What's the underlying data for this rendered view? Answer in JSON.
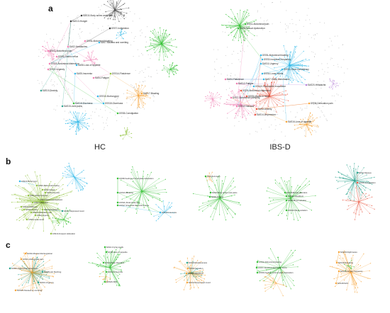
{
  "figure": {
    "panels": [
      {
        "letter": "a"
      },
      {
        "letter": "b"
      },
      {
        "letter": "c"
      }
    ],
    "captions": [
      "HC",
      "IBS-D"
    ]
  },
  "colors": {
    "green": "#2fbf2f",
    "blue": "#29b6e8",
    "pink": "#f07ab0",
    "orange": "#f5a030",
    "olive": "#8fc23a",
    "teal": "#22a08a",
    "purple": "#b47ad8",
    "red": "#e8503a",
    "gray": "#bdbdbd",
    "dark": "#333333"
  },
  "networks": [
    {
      "id": "a-hc",
      "panel": "a",
      "hubs": [
        {
          "label": "SAS11-Body aches and pains",
          "color": "dark"
        },
        {
          "label": "SAS13-Hunger",
          "color": "dark"
        },
        {
          "label": "GSS7-Indigestion",
          "color": "dark"
        },
        {
          "label": "GSS6-Abdominal bloating",
          "color": "pink"
        },
        {
          "label": "SAS2-Headaches",
          "color": "pink"
        },
        {
          "label": "GSS1-Abdominal pain",
          "color": "pink"
        },
        {
          "label": "GSS4-Gastric reflux",
          "color": "pink"
        },
        {
          "label": "GSS3-Abdominal distension",
          "color": "pink"
        },
        {
          "label": "SAS8-Loss of appetite",
          "color": "blue"
        },
        {
          "label": "SAS7-Nausea and vomiting",
          "color": "blue"
        },
        {
          "label": "GSS2-Urgency",
          "color": "pink"
        },
        {
          "label": "SAS4-Fatigue",
          "color": "pink"
        },
        {
          "label": "SAS5-Insomnia",
          "color": "blue"
        },
        {
          "label": "GSS14-Flatulence",
          "color": "olive"
        },
        {
          "label": "SAS15-Joint pains",
          "color": "teal"
        },
        {
          "label": "SAS10-Anxiety",
          "color": "teal"
        },
        {
          "label": "SAS18-Dizziness",
          "color": "green"
        },
        {
          "label": "GSS8-Constipation",
          "color": "green"
        },
        {
          "label": "SAS17-Bloating",
          "color": "orange"
        },
        {
          "label": "GSS15-Diarrhoea",
          "color": "blue"
        },
        {
          "label": "GSS10-Borborygmi",
          "color": "blue"
        }
      ]
    },
    {
      "id": "a-ibsd",
      "panel": "a",
      "hubs": [
        {
          "label": "GSS1-Abdominal pain",
          "color": "green"
        },
        {
          "label": "SAS6-Sexual dysfunction",
          "color": "green"
        },
        {
          "label": "SAS4-Flatulence",
          "color": "pink"
        },
        {
          "label": "GSS6-Abdominal bloating",
          "color": "blue"
        },
        {
          "label": "GSS3-Increased frequency",
          "color": "blue"
        },
        {
          "label": "SAS11-Urgency",
          "color": "blue"
        },
        {
          "label": "GSS4-Loose stools",
          "color": "blue"
        },
        {
          "label": "SAS7-Sleep disturbance",
          "color": "blue"
        },
        {
          "label": "GSS10-Incomplete evacuation",
          "color": "blue"
        },
        {
          "label": "SAS12-Fatigue",
          "color": "pink"
        },
        {
          "label": "GSS5-Mucus in stool",
          "color": "red"
        },
        {
          "label": "GSS9-Abdominal distension",
          "color": "red"
        },
        {
          "label": "SAS3-Anxiety",
          "color": "red"
        },
        {
          "label": "GSS12-Nausea",
          "color": "pink"
        },
        {
          "label": "SAS14-Depression",
          "color": "red"
        },
        {
          "label": "GSS7-Abdominal cramping",
          "color": "pink"
        },
        {
          "label": "SAS20-Headache",
          "color": "purple"
        },
        {
          "label": "GSS8-Defecation pain",
          "color": "orange"
        },
        {
          "label": "SAS16-Loss of appetite",
          "color": "orange"
        },
        {
          "label": "GSS11-Stool consistency",
          "color": "blue"
        }
      ]
    },
    {
      "id": "b1",
      "panel": "b",
      "hubs": [
        {
          "label": "GSS10-Borborygmi",
          "color": "blue"
        },
        {
          "label": "GSS6-Abdominal bloating",
          "color": "olive"
        },
        {
          "label": "SAS4-Fatigue",
          "color": "olive"
        },
        {
          "label": "SAS5-Insomnia",
          "color": "olive"
        },
        {
          "label": "GSS1-Abdominal pain",
          "color": "olive"
        },
        {
          "label": "GSS3-Abdominal distension",
          "color": "olive"
        },
        {
          "label": "GSS7-Indigestion",
          "color": "olive"
        },
        {
          "label": "GSS15-Diarrhoea",
          "color": "olive"
        },
        {
          "label": "SAS10-Anxiety",
          "color": "olive"
        },
        {
          "label": "GSS12-Defecation pain",
          "color": "olive"
        },
        {
          "label": "SAS2-Headaches",
          "color": "olive"
        },
        {
          "label": "GSS2-Urgency",
          "color": "olive"
        },
        {
          "label": "GSS9-Loose stools",
          "color": "olive"
        },
        {
          "label": "SAS12-Depressed mood",
          "color": "teal"
        },
        {
          "label": "GSS13-Frequent defecation",
          "color": "olive"
        }
      ]
    },
    {
      "id": "b2",
      "panel": "b",
      "hubs": [
        {
          "label": "GSS8-Feeling of incomplete defecation",
          "color": "green"
        },
        {
          "label": "GSS13-Bloating",
          "color": "green"
        },
        {
          "label": "GSS11-Abdominal pain",
          "color": "green"
        },
        {
          "label": "GSS17-Intestinal discomfort score",
          "color": "green"
        },
        {
          "label": "SAS16-Insomnia",
          "color": "blue"
        }
      ]
    },
    {
      "id": "b3",
      "panel": "b",
      "hubs": [
        {
          "label": "SAS18-Anxiety",
          "color": "green"
        },
        {
          "label": "SAS9-Body aches and pains",
          "color": "green"
        },
        {
          "label": "SAS6-Fatigue",
          "color": "green"
        }
      ]
    },
    {
      "id": "b4",
      "panel": "b",
      "hubs": [
        {
          "label": "SAS15-Bowel disorders",
          "color": "green"
        },
        {
          "label": "GSS14-Heartburn",
          "color": "green"
        },
        {
          "label": "SAS8-Mood variation",
          "color": "green"
        },
        {
          "label": "GSS16-Stool variation",
          "color": "green"
        }
      ]
    },
    {
      "id": "b5",
      "panel": "b",
      "hubs": [
        {
          "label": "SAS3-Nausea",
          "color": "teal"
        },
        {
          "label": "GSS5-Constipation",
          "color": "red"
        }
      ]
    },
    {
      "id": "c1",
      "panel": "c",
      "hubs": [
        {
          "label": "SAS4-Mental disintegration",
          "color": "orange"
        },
        {
          "label": "GSS1-Abdominal pain",
          "color": "orange"
        },
        {
          "label": "GSS5-Abdominal distension",
          "color": "teal"
        },
        {
          "label": "SAS8-Hot flushing",
          "color": "teal"
        },
        {
          "label": "GSS3-Urgency",
          "color": "teal"
        },
        {
          "label": "SAS15-Nausea & vomiting",
          "color": "orange"
        }
      ]
    },
    {
      "id": "c2",
      "panel": "c",
      "hubs": [
        {
          "label": "SAS2-Crying spells",
          "color": "green"
        },
        {
          "label": "SAS5-Loss of appetite",
          "color": "green"
        },
        {
          "label": "SAS4-Sleep disorders",
          "color": "green"
        },
        {
          "label": "SAS13-Insomnia",
          "color": "green"
        },
        {
          "label": "SDS26-SDS",
          "color": "green"
        }
      ]
    },
    {
      "id": "c3",
      "panel": "c",
      "hubs": [
        {
          "label": "SAS10-Restlessness",
          "color": "teal"
        },
        {
          "label": "GSS4-Urination",
          "color": "orange"
        },
        {
          "label": "GSS15-Heartburn",
          "color": "orange"
        },
        {
          "label": "SAS13-Depressed mood",
          "color": "orange"
        }
      ]
    },
    {
      "id": "c4",
      "panel": "c",
      "hubs": [
        {
          "label": "GSS2-Abdominal bloating",
          "color": "green"
        },
        {
          "label": "GSS7-Intestinal discomfort score",
          "color": "green"
        },
        {
          "label": "GSS6-Feeling of incomplete defecation",
          "color": "green"
        }
      ]
    },
    {
      "id": "c5",
      "panel": "c",
      "hubs": [
        {
          "label": "SAS20-Nightmares",
          "color": "orange"
        },
        {
          "label": "SAS19-Sweating",
          "color": "orange"
        },
        {
          "label": "SAS16-Urinary frequency",
          "color": "orange"
        },
        {
          "label": "SAS18-SAS",
          "color": "orange"
        }
      ]
    }
  ]
}
